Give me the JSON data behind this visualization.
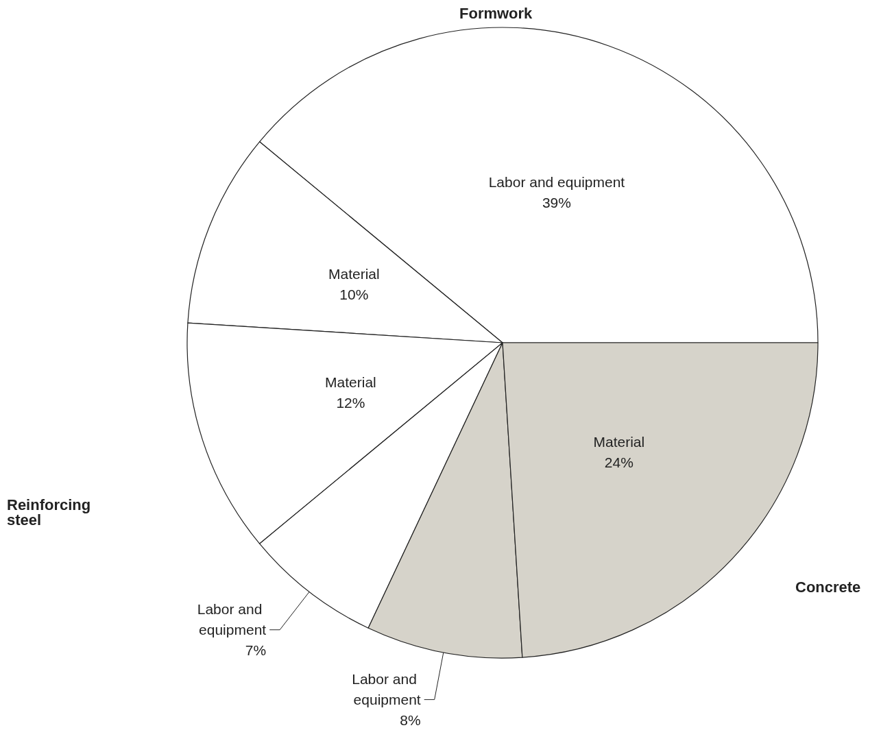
{
  "chart_data": {
    "type": "pie",
    "categories": [
      "Labor and equipment",
      "Material",
      "Material",
      "Labor and equipment",
      "Labor and equipment",
      "Material"
    ],
    "values": [
      39,
      10,
      12,
      7,
      8,
      24
    ],
    "value_labels": [
      "39%",
      "10%",
      "12%",
      "7%",
      "8%",
      "24%"
    ],
    "colors": [
      "#ffffff",
      "#ffffff",
      "#ffffff",
      "#ffffff",
      "#d6d3ca",
      "#d6d3ca"
    ],
    "annotations": [
      "Formwork",
      "Reinforcing steel",
      "Concrete"
    ],
    "legend": false
  }
}
